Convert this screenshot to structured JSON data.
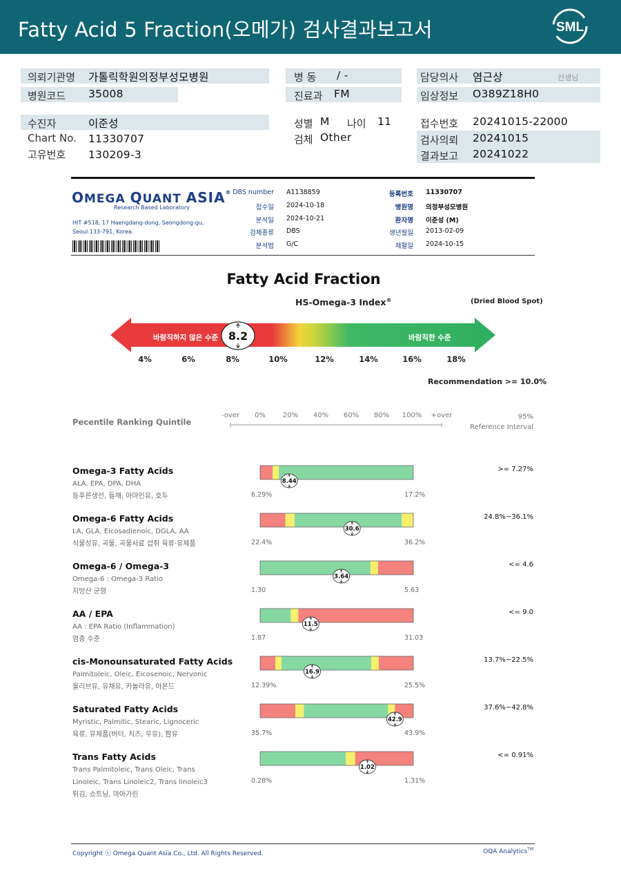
{
  "header": {
    "title": "Fatty Acid 5 Fraction(오메가) 검사결과보고서",
    "logo_text": "SML"
  },
  "patient": {
    "institution_label": "의뢰기관명",
    "institution": "가톨릭학원의정부성모병원",
    "hospital_code_label": "병원코드",
    "hospital_code": "35008",
    "ward_label": "병  동",
    "ward": "/ -",
    "dept_label": "진료과",
    "dept": "FM",
    "doctor_label": "담당의사",
    "doctor": "염근상",
    "doctor_suffix": "선생님",
    "clinical_label": "임상정보",
    "clinical": "O389Z18H0",
    "examinee_label": "수진자",
    "examinee": "이준성",
    "chart_label": "Chart No.",
    "chart": "11330707",
    "unique_label": "고유번호",
    "unique": "130209-3",
    "sex_label": "성별",
    "sex": "M",
    "age_label": "나이",
    "age": "11",
    "specimen_label": "검체",
    "specimen": "Other",
    "receipt_label": "접수번호",
    "receipt": "20241015-22000",
    "request_label": "검사의뢰",
    "request": "20241015",
    "report_label": "결과보고",
    "report": "20241022"
  },
  "oqa": {
    "logo_o": "O",
    "logo_mega": "MEGA",
    "logo_q": "Q",
    "logo_uant": "UANT",
    "logo_asia": "ASIA",
    "logo_reg": "®",
    "subtitle": "Research Based Laboratory",
    "address": "HIT #518, 17 Haengdang-dong, Seongdong-gu, Seoul 133-791, Korea.",
    "left": [
      {
        "label": "DBS number",
        "value": "A1138859"
      },
      {
        "label": "접수일",
        "value": "2024-10-18"
      },
      {
        "label": "분석일",
        "value": "2024-10-21"
      },
      {
        "label": "검체종류",
        "value": "DBS"
      },
      {
        "label": "분석법",
        "value": "G/C"
      }
    ],
    "right": [
      {
        "label": "등록번호",
        "value": "11330707"
      },
      {
        "label": "병원명",
        "value": "의정부성모병원"
      },
      {
        "label": "환자명",
        "value": "이준성 (M)"
      },
      {
        "label": "생년월일",
        "value": "2013-02-09"
      },
      {
        "label": "채혈일",
        "value": "2024-10-15"
      }
    ]
  },
  "fraction": {
    "title": "Fatty Acid Fraction",
    "index_title": "HS-Omega-3 Index",
    "index_reg": "®",
    "dbs_note": "(Dried Blood Spot)",
    "bad_label": "바람직하지 않은 수준",
    "good_label": "바람직한 수준",
    "value": "8.2",
    "value_num": 8.2,
    "ticks": [
      "4%",
      "6%",
      "8%",
      "10%",
      "12%",
      "14%",
      "16%",
      "18%"
    ],
    "recommendation": "Recommendation  >= 10.0%"
  },
  "ranking": {
    "title": "Pecentile Ranking Quintile",
    "scale": [
      "-over",
      "0%",
      "20%",
      "40%",
      "60%",
      "80%",
      "100%",
      "+over"
    ],
    "ref_header_1": "95%",
    "ref_header_2": "Reference Interval"
  },
  "rows": [
    {
      "name": "Omega-3 Fatty Acids",
      "sub": "ALA, EPA, DPA, DHA",
      "kor": "등푸른생선, 들깨, 아마인유, 호두",
      "ref": ">= 7.27%",
      "min": "6.29%",
      "max": "17.2%",
      "value": "8.44",
      "pos": 0.19,
      "segments": [
        {
          "color": "#f4827d",
          "w": 0.082
        },
        {
          "color": "#f5ef6c",
          "w": 0.04
        },
        {
          "color": "#86d8a3",
          "w": 0.878
        }
      ]
    },
    {
      "name": "Omega-6 Fatty Acids",
      "sub": "LA, GLA, Eicosadienoic, DGLA, AA",
      "kor": "식물성유, 곡물, 곡물사료 섭취 육류·유제품",
      "ref": "24.8%~36.1%",
      "min": "22.4%",
      "max": "36.2%",
      "value": "30.6",
      "pos": 0.6,
      "segments": [
        {
          "color": "#f4827d",
          "w": 0.165
        },
        {
          "color": "#f5ef6c",
          "w": 0.06
        },
        {
          "color": "#86d8a3",
          "w": 0.7
        },
        {
          "color": "#f5ef6c",
          "w": 0.075
        }
      ]
    },
    {
      "name": "Omega-6 / Omega-3",
      "sub": "Omega-6 : Omega-3 Ratio",
      "kor": "지방산 균형",
      "ref": "<= 4.6",
      "min": "1.30",
      "max": "5.63",
      "value": "3.64",
      "pos": 0.53,
      "segments": [
        {
          "color": "#86d8a3",
          "w": 0.72
        },
        {
          "color": "#f5ef6c",
          "w": 0.05
        },
        {
          "color": "#f4827d",
          "w": 0.23
        }
      ]
    },
    {
      "name": "AA / EPA",
      "sub": "AA : EPA Ratio (Inflammation)",
      "kor": "염증 수준",
      "ref": "<= 9.0",
      "min": "1.87",
      "max": "31.03",
      "value": "11.5",
      "pos": 0.33,
      "segments": [
        {
          "color": "#86d8a3",
          "w": 0.2
        },
        {
          "color": "#f5ef6c",
          "w": 0.05
        },
        {
          "color": "#f4827d",
          "w": 0.75
        }
      ]
    },
    {
      "name": "cis-Monounsaturated Fatty Acids",
      "sub": "Palmitoleic, Oleic, Eicosenoic, Nervonic",
      "kor": "올리브유, 유채유, 카놀라유, 아몬드",
      "ref": "13.7%~22.5%",
      "min": "12.39%",
      "max": "25.5%",
      "value": "16.9",
      "pos": 0.34,
      "segments": [
        {
          "color": "#f4827d",
          "w": 0.1
        },
        {
          "color": "#f5ef6c",
          "w": 0.04
        },
        {
          "color": "#86d8a3",
          "w": 0.585
        },
        {
          "color": "#f5ef6c",
          "w": 0.05
        },
        {
          "color": "#f4827d",
          "w": 0.225
        }
      ]
    },
    {
      "name": "Saturated Fatty Acids",
      "sub": "Myristic, Palmitic, Stearic, Lignoceric",
      "kor": "육류, 유제품(버터, 치즈, 우유), 팜유",
      "ref": "37.6%~42.8%",
      "min": "35.7%",
      "max": "43.9%",
      "value": "42.9",
      "pos": 0.88,
      "segments": [
        {
          "color": "#f4827d",
          "w": 0.23
        },
        {
          "color": "#f5ef6c",
          "w": 0.055
        },
        {
          "color": "#86d8a3",
          "w": 0.55
        },
        {
          "color": "#f5ef6c",
          "w": 0.045
        },
        {
          "color": "#f4827d",
          "w": 0.12
        }
      ]
    },
    {
      "name": "Trans Fatty Acids",
      "sub": "Trans Palmitoleic, Trans Oleic, Trans",
      "sub2": "Linoleic, Trans Linoleic2, Trans linoleic3",
      "kor": "튀김, 쇼트닝, 마아가린",
      "ref": "<= 0.91%",
      "min": "0.28%",
      "max": "1.31%",
      "value": "1.02",
      "pos": 0.7,
      "segments": [
        {
          "color": "#86d8a3",
          "w": 0.56
        },
        {
          "color": "#f5ef6c",
          "w": 0.06
        },
        {
          "color": "#f4827d",
          "w": 0.38
        }
      ]
    }
  ],
  "footer": {
    "copyright": "Copyright ⓒ Omega Quant Asia Co., Ltd.  All Rights Reserved.",
    "brand": "OQA Analytics",
    "tm": "TM"
  }
}
